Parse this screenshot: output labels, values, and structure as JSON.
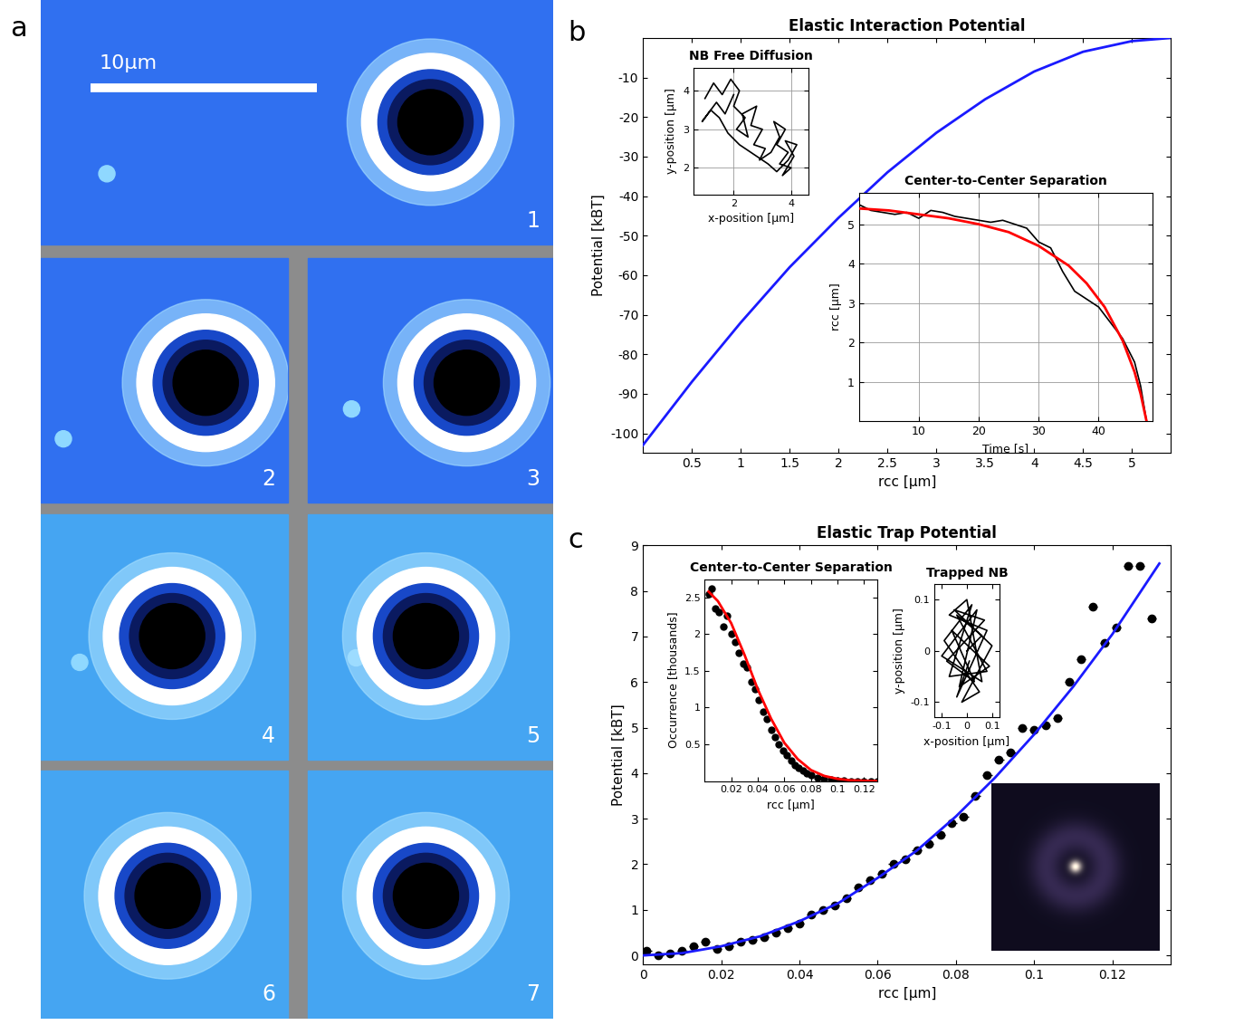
{
  "image_panel": {
    "panel_label": "a",
    "scale_bar": "10μm",
    "frame_labels": [
      "1",
      "2",
      "3",
      "4",
      "5",
      "6",
      "7"
    ]
  },
  "chart_data": [
    {
      "panel_label": "b",
      "type": "line",
      "title": "Elastic Interaction Potential",
      "x_label": "rcc [μm]",
      "y_label": "Potential [kBT]",
      "x": [
        0,
        0.5,
        1,
        1.5,
        2,
        2.5,
        3,
        3.5,
        4,
        4.5,
        5,
        5.4
      ],
      "values": [
        -103,
        -87,
        -72,
        -58,
        -45.5,
        -34,
        -24,
        -15.5,
        -8.5,
        -3.5,
        -0.8,
        0
      ],
      "color": "#1a1aff",
      "xlim": [
        0,
        5.4
      ],
      "ylim": [
        -105,
        0
      ],
      "xticks": [
        0.5,
        1,
        1.5,
        2,
        2.5,
        3,
        3.5,
        4,
        4.5,
        5
      ],
      "yticks": [
        -100,
        -90,
        -80,
        -70,
        -60,
        -50,
        -40,
        -30,
        -20,
        -10
      ],
      "grid": false
    },
    {
      "type": "line",
      "title": "NB Free Diffusion",
      "x_label": "x-position [μm]",
      "y_label": "y-position [μm]",
      "x": [
        1.0,
        1.3,
        1.6,
        1.9,
        2.2,
        2.0,
        2.4,
        2.1,
        2.5,
        2.3,
        2.8,
        2.6,
        3.0,
        2.7,
        3.1,
        2.9,
        3.3,
        3.6,
        3.4,
        3.8,
        3.5,
        3.9,
        3.6,
        4.0,
        3.7,
        4.1,
        3.8,
        4.2,
        3.9,
        3.5,
        3.2,
        2.6,
        2.2,
        1.8,
        1.5,
        1.2,
        0.9,
        1.4,
        1.7,
        2.0
      ],
      "values": [
        3.8,
        4.2,
        3.9,
        4.3,
        4.0,
        3.6,
        3.3,
        3.0,
        2.8,
        3.4,
        3.6,
        3.1,
        3.0,
        2.6,
        2.5,
        2.2,
        2.4,
        2.8,
        3.2,
        3.0,
        2.6,
        2.4,
        2.1,
        2.0,
        1.8,
        2.3,
        2.7,
        2.6,
        2.2,
        1.9,
        2.1,
        2.4,
        2.6,
        2.9,
        3.3,
        3.5,
        3.2,
        3.7,
        3.4,
        3.9
      ],
      "color": "#000000",
      "xlim": [
        0.6,
        4.6
      ],
      "ylim": [
        1.3,
        4.6
      ],
      "xticks": [
        2,
        4
      ],
      "yticks": [
        2,
        3,
        4
      ],
      "grid": true
    },
    {
      "type": "line",
      "title": "Center-to-Center Separation",
      "x_label": "Time [s]",
      "y_label": "rcc [μm]",
      "series": [
        {
          "color": "#000000",
          "x": [
            0,
            2,
            4,
            6,
            8,
            10,
            12,
            14,
            16,
            18,
            20,
            22,
            24,
            26,
            28,
            30,
            32,
            34,
            36,
            38,
            40,
            42,
            44,
            46,
            47,
            48
          ],
          "values": [
            5.5,
            5.35,
            5.3,
            5.25,
            5.3,
            5.15,
            5.35,
            5.3,
            5.2,
            5.15,
            5.1,
            5.05,
            5.1,
            5.0,
            4.9,
            4.55,
            4.4,
            3.8,
            3.3,
            3.1,
            2.9,
            2.5,
            2.1,
            1.5,
            0.9,
            0.0
          ]
        },
        {
          "color": "#ff0000",
          "x": [
            0,
            5,
            10,
            15,
            20,
            25,
            30,
            35,
            38,
            41,
            44,
            46,
            47,
            48
          ],
          "values": [
            5.4,
            5.35,
            5.25,
            5.15,
            5.0,
            4.8,
            4.45,
            3.95,
            3.5,
            2.9,
            2.05,
            1.25,
            0.7,
            0.0
          ]
        }
      ],
      "xlim": [
        0,
        49
      ],
      "ylim": [
        0,
        5.8
      ],
      "xticks": [
        10,
        20,
        30,
        40
      ],
      "yticks": [
        1,
        2,
        3,
        4,
        5
      ],
      "grid": true
    },
    {
      "panel_label": "c",
      "type": "scatter",
      "title": "Elastic Trap Potential",
      "x_label": "rcc [μm]",
      "y_label": "Potential [kBT]",
      "series": [
        {
          "type": "scatter",
          "color": "#000000",
          "marker": "o",
          "x": [
            0.001,
            0.004,
            0.007,
            0.01,
            0.013,
            0.016,
            0.019,
            0.022,
            0.025,
            0.028,
            0.031,
            0.034,
            0.037,
            0.04,
            0.043,
            0.046,
            0.049,
            0.052,
            0.055,
            0.058,
            0.061,
            0.064,
            0.067,
            0.07,
            0.073,
            0.076,
            0.079,
            0.082,
            0.085,
            0.088,
            0.091,
            0.094,
            0.097,
            0.1,
            0.103,
            0.106,
            0.109,
            0.112,
            0.115,
            0.118,
            0.121,
            0.124,
            0.127,
            0.13
          ],
          "values": [
            0.1,
            0.0,
            0.05,
            0.1,
            0.2,
            0.3,
            0.15,
            0.2,
            0.3,
            0.35,
            0.4,
            0.5,
            0.6,
            0.7,
            0.9,
            1.0,
            1.1,
            1.25,
            1.5,
            1.65,
            1.8,
            2.0,
            2.1,
            2.3,
            2.45,
            2.65,
            2.9,
            3.05,
            3.5,
            3.95,
            4.3,
            4.45,
            5.0,
            4.95,
            5.05,
            5.2,
            6.0,
            6.5,
            7.65,
            6.85,
            7.2,
            8.55,
            8.55,
            7.4
          ],
          "xerr": [
            0.0012,
            0.0012,
            0.0012,
            0.0012,
            0.0012,
            0.0012,
            0.0012,
            0.0012,
            0.0012,
            0.0012,
            0.0012,
            0.0012,
            0.0012,
            0.0012,
            0.0012,
            0.0012,
            0.0012,
            0.0012,
            0.0012,
            0.0012,
            0.0012,
            0.0012,
            0.0012,
            0.0012,
            0.0012,
            0.0012,
            0.0012,
            0.0012,
            0.0012,
            0.0012,
            0.0012,
            0.0012,
            0.0012,
            0.0012,
            0.0012,
            0.0012,
            0.0012,
            0.0012,
            0.0012,
            0.0012,
            0.0012,
            0.0012,
            0.0012,
            0.0012
          ]
        },
        {
          "type": "line",
          "color": "#1a1aff",
          "x": [
            0,
            0.01,
            0.02,
            0.03,
            0.04,
            0.05,
            0.06,
            0.07,
            0.08,
            0.09,
            0.1,
            0.11,
            0.12,
            0.132
          ],
          "values": [
            0,
            0.05,
            0.2,
            0.42,
            0.75,
            1.15,
            1.7,
            2.3,
            3.05,
            3.9,
            4.85,
            5.9,
            7.05,
            8.6
          ]
        }
      ],
      "xlim": [
        0,
        0.135
      ],
      "ylim": [
        -0.2,
        9
      ],
      "xticks": [
        0,
        0.02,
        0.04,
        0.06,
        0.08,
        0.1,
        0.12
      ],
      "yticks": [
        0,
        1,
        2,
        3,
        4,
        5,
        6,
        7,
        8,
        9
      ],
      "grid": false
    },
    {
      "type": "scatter",
      "title": "Center-to-Center Separation",
      "x_label": "rcc [μm]",
      "y_label": "Occurrence [thousands]",
      "series": [
        {
          "type": "scatter",
          "color": "#000000",
          "marker": "o",
          "x": [
            0.003,
            0.005,
            0.008,
            0.011,
            0.014,
            0.017,
            0.02,
            0.023,
            0.026,
            0.029,
            0.032,
            0.035,
            0.038,
            0.041,
            0.044,
            0.047,
            0.05,
            0.053,
            0.056,
            0.059,
            0.062,
            0.065,
            0.068,
            0.071,
            0.074,
            0.077,
            0.08,
            0.085,
            0.09,
            0.095,
            0.1,
            0.105,
            0.11,
            0.115,
            0.12,
            0.125,
            0.13
          ],
          "values": [
            2.55,
            2.62,
            2.35,
            2.3,
            2.1,
            2.25,
            2.0,
            1.9,
            1.75,
            1.6,
            1.55,
            1.35,
            1.25,
            1.1,
            0.95,
            0.85,
            0.7,
            0.6,
            0.5,
            0.42,
            0.35,
            0.28,
            0.22,
            0.18,
            0.14,
            0.1,
            0.08,
            0.05,
            0.03,
            0.02,
            0.01,
            0.01,
            0.0,
            0.0,
            0.0,
            0.0,
            0.0
          ]
        },
        {
          "type": "line",
          "color": "#ff0000",
          "x": [
            0.003,
            0.01,
            0.02,
            0.03,
            0.04,
            0.05,
            0.06,
            0.07,
            0.08,
            0.09,
            0.1,
            0.11,
            0.13
          ],
          "values": [
            2.58,
            2.45,
            2.15,
            1.72,
            1.25,
            0.85,
            0.52,
            0.3,
            0.15,
            0.07,
            0.03,
            0.01,
            0.0
          ]
        }
      ],
      "xlim": [
        0,
        0.13
      ],
      "ylim": [
        0,
        2.75
      ],
      "xticks": [
        0.02,
        0.04,
        0.06,
        0.08,
        0.1,
        0.12
      ],
      "yticks": [
        0.5,
        1,
        1.5,
        2,
        2.5
      ],
      "grid": false
    },
    {
      "type": "line",
      "title": "Trapped NB",
      "x_label": "x-position [μm]",
      "y_label": "y-position [μm]",
      "x": [
        0,
        0.06,
        -0.04,
        0.08,
        -0.07,
        0.02,
        -0.09,
        0.05,
        -0.02,
        0.1,
        -0.05,
        0.07,
        -0.08,
        0.03,
        -0.06,
        0.09,
        -0.03,
        0.04,
        -0.1,
        0.06,
        0,
        -0.07,
        0.08,
        -0.04,
        0.01
      ],
      "values": [
        0,
        0.03,
        0.07,
        -0.04,
        -0.05,
        0.09,
        0.02,
        -0.08,
        -0.1,
        0.01,
        0.08,
        0.06,
        -0.02,
        -0.06,
        0.04,
        -0.03,
        -0.07,
        0.08,
        -0.01,
        -0.06,
        0.1,
        0.07,
        0.04,
        -0.09,
        -0.02
      ],
      "color": "#000000",
      "xlim": [
        -0.13,
        0.13
      ],
      "ylim": [
        -0.13,
        0.13
      ],
      "xticks": [
        -0.1,
        0,
        0.1
      ],
      "yticks": [
        -0.1,
        0,
        0.1
      ],
      "grid": false
    }
  ]
}
